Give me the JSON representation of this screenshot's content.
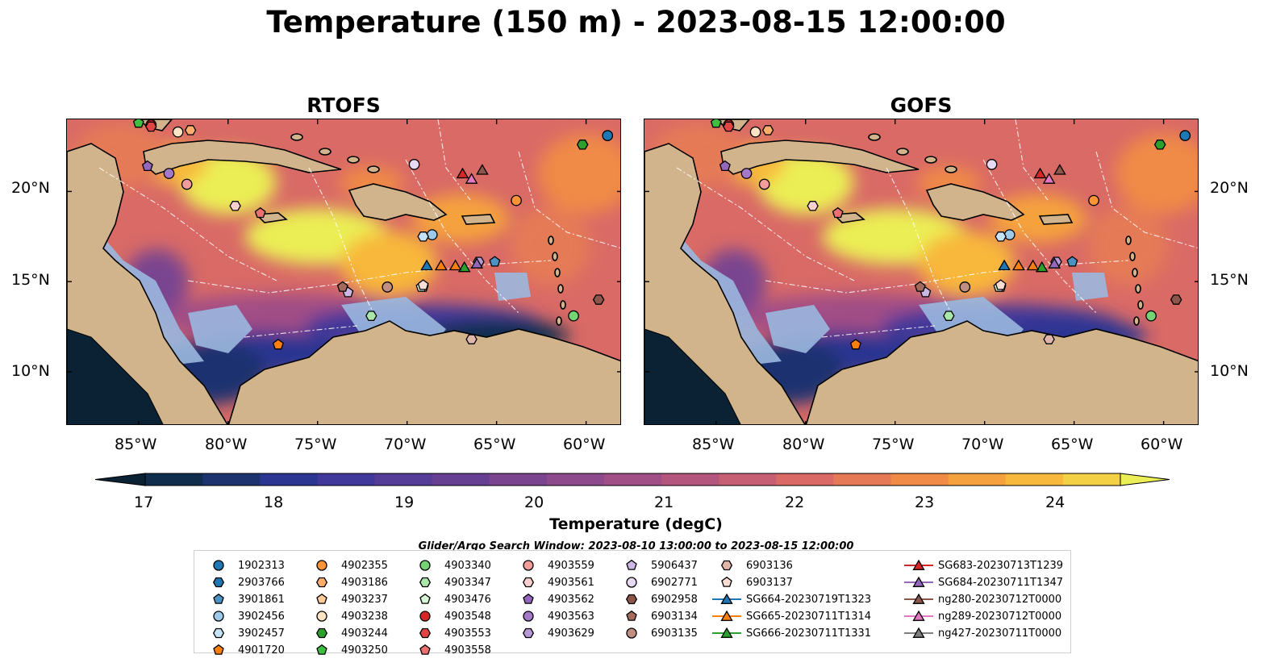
{
  "title": "Temperature (150 m) - 2023-08-15 12:00:00",
  "panels": [
    {
      "title": "RTOFS"
    },
    {
      "title": "GOFS"
    }
  ],
  "axes": {
    "lon_labels": [
      "85°W",
      "80°W",
      "75°W",
      "70°W",
      "65°W",
      "60°W"
    ],
    "lat_labels": [
      "20°N",
      "15°N",
      "10°N"
    ],
    "lon_range": [
      -89,
      -58
    ],
    "lat_range": [
      7,
      24
    ]
  },
  "colorbar": {
    "label": "Temperature (degC)",
    "ticks": [
      "17",
      "18",
      "19",
      "20",
      "21",
      "22",
      "23",
      "24"
    ],
    "vmin": 16.5,
    "vmax": 24.5,
    "step": 0.5,
    "extend": "both",
    "colors": [
      "#0a2234",
      "#112d4e",
      "#1c3370",
      "#2a3691",
      "#40389a",
      "#553c98",
      "#663f92",
      "#7a4490",
      "#8d498b",
      "#a14e86",
      "#b4557e",
      "#c65e74",
      "#d96a66",
      "#e57a56",
      "#ef8a47",
      "#f5a23e",
      "#f8b83b",
      "#f3d044",
      "#ebee55"
    ]
  },
  "search_window": "Glider/Argo Search Window: 2023-08-10 13:00:00 to 2023-08-15 12:00:00",
  "legend": [
    {
      "label": "1902313",
      "marker": "circle",
      "color": "#1f77b4"
    },
    {
      "label": "2903766",
      "marker": "hexagon",
      "color": "#1f77b4"
    },
    {
      "label": "3901861",
      "marker": "pentagon",
      "color": "#4c92c3"
    },
    {
      "label": "3902456",
      "marker": "circle",
      "color": "#9ecae9"
    },
    {
      "label": "3902457",
      "marker": "hexagon",
      "color": "#c6e2f5"
    },
    {
      "label": "4901720",
      "marker": "pentagon",
      "color": "#ff7f0e"
    },
    {
      "label": "4902355",
      "marker": "circle",
      "color": "#ff9436"
    },
    {
      "label": "4903186",
      "marker": "hexagon",
      "color": "#ffae6b"
    },
    {
      "label": "4903237",
      "marker": "pentagon",
      "color": "#ffcc99"
    },
    {
      "label": "4903238",
      "marker": "circle",
      "color": "#ffe4c4"
    },
    {
      "label": "4903244",
      "marker": "hexagon",
      "color": "#2ca02c"
    },
    {
      "label": "4903250",
      "marker": "pentagon",
      "color": "#3fbf3f"
    },
    {
      "label": "4903340",
      "marker": "circle",
      "color": "#74d474"
    },
    {
      "label": "4903347",
      "marker": "hexagon",
      "color": "#a9e6a9"
    },
    {
      "label": "4903476",
      "marker": "pentagon",
      "color": "#d7f5d7"
    },
    {
      "label": "4903548",
      "marker": "circle",
      "color": "#d62728"
    },
    {
      "label": "4903553",
      "marker": "hexagon",
      "color": "#e04444"
    },
    {
      "label": "4903558",
      "marker": "pentagon",
      "color": "#ec7070"
    },
    {
      "label": "4903559",
      "marker": "circle",
      "color": "#f29c9c"
    },
    {
      "label": "4903561",
      "marker": "hexagon",
      "color": "#f9d0d0"
    },
    {
      "label": "4903562",
      "marker": "pentagon",
      "color": "#9467bd"
    },
    {
      "label": "4903563",
      "marker": "circle",
      "color": "#a47ac8"
    },
    {
      "label": "4903629",
      "marker": "hexagon",
      "color": "#b79ad5"
    },
    {
      "label": "5906437",
      "marker": "pentagon",
      "color": "#ccb8e3"
    },
    {
      "label": "6902771",
      "marker": "circle",
      "color": "#e6d9f2"
    },
    {
      "label": "6902958",
      "marker": "hexagon",
      "color": "#8c564b"
    },
    {
      "label": "6903134",
      "marker": "pentagon",
      "color": "#a46a5e"
    },
    {
      "label": "6903135",
      "marker": "circle",
      "color": "#c08f82"
    },
    {
      "label": "6903136",
      "marker": "hexagon",
      "color": "#e0b5aa"
    },
    {
      "label": "6903137",
      "marker": "pentagon",
      "color": "#f8ddd5"
    },
    {
      "label": "SG664-20230719T1323",
      "marker": "triangle",
      "color": "#1f77b4"
    },
    {
      "label": "SG665-20230711T1314",
      "marker": "triangle",
      "color": "#ff7f0e"
    },
    {
      "label": "SG666-20230711T1331",
      "marker": "triangle",
      "color": "#2ca02c"
    },
    {
      "label": "SG683-20230713T1239",
      "marker": "triangle",
      "color": "#d62728"
    },
    {
      "label": "SG684-20230711T1347",
      "marker": "triangle",
      "color": "#9467bd"
    },
    {
      "label": "ng280-20230712T0000",
      "marker": "triangle",
      "color": "#8c564b"
    },
    {
      "label": "ng289-20230712T0000",
      "marker": "triangle",
      "color": "#e377c2"
    },
    {
      "label": "ng427-20230711T0000",
      "marker": "triangle",
      "color": "#7f7f7f"
    }
  ],
  "markers": [
    {
      "label": "1902313",
      "lon": -58.8,
      "lat": 23.1
    },
    {
      "label": "2903766",
      "lon": -60.2,
      "lat": 22.6
    },
    {
      "label": "3901861",
      "lon": -65.1,
      "lat": 16.1
    },
    {
      "label": "3902456",
      "lon": -68.6,
      "lat": 17.6
    },
    {
      "label": "3902457",
      "lon": -69.1,
      "lat": 17.5
    },
    {
      "label": "4901720",
      "lon": -77.2,
      "lat": 11.5
    },
    {
      "label": "4902355",
      "lon": -63.9,
      "lat": 19.5
    },
    {
      "label": "4903186",
      "lon": -82.1,
      "lat": 23.4
    },
    {
      "label": "4903237",
      "lon": -69.1,
      "lat": 14.7
    },
    {
      "label": "4903238",
      "lon": -82.8,
      "lat": 23.3
    },
    {
      "label": "4903244",
      "lon": -60.2,
      "lat": 22.6
    },
    {
      "label": "4903250",
      "lon": -85.0,
      "lat": 23.8
    },
    {
      "label": "4903340",
      "lon": -60.7,
      "lat": 13.1
    },
    {
      "label": "4903347",
      "lon": -72.0,
      "lat": 13.1
    },
    {
      "label": "4903476",
      "lon": -69.2,
      "lat": 14.7
    },
    {
      "label": "4903548",
      "lon": -84.3,
      "lat": 23.7
    },
    {
      "label": "4903553",
      "lon": -84.3,
      "lat": 23.6
    },
    {
      "label": "4903558",
      "lon": -78.2,
      "lat": 18.8
    },
    {
      "label": "4903559",
      "lon": -82.3,
      "lat": 20.4
    },
    {
      "label": "4903561",
      "lon": -79.6,
      "lat": 19.2
    },
    {
      "label": "4903562",
      "lon": -84.5,
      "lat": 21.4
    },
    {
      "label": "4903563",
      "lon": -83.3,
      "lat": 21.0
    },
    {
      "label": "4903629",
      "lon": -66.0,
      "lat": 16.1
    },
    {
      "label": "5906437",
      "lon": -73.3,
      "lat": 14.4
    },
    {
      "label": "6902771",
      "lon": -69.6,
      "lat": 21.5
    },
    {
      "label": "6902958",
      "lon": -59.3,
      "lat": 14.0
    },
    {
      "label": "6903134",
      "lon": -73.6,
      "lat": 14.7
    },
    {
      "label": "6903135",
      "lon": -71.1,
      "lat": 14.7
    },
    {
      "label": "6903136",
      "lon": -66.4,
      "lat": 11.8
    },
    {
      "label": "6903137",
      "lon": -69.1,
      "lat": 14.8
    },
    {
      "label": "SG664-20230719T1323",
      "lon": -68.9,
      "lat": 15.9
    },
    {
      "label": "SG665-20230711T1314",
      "lon": -68.1,
      "lat": 15.9
    },
    {
      "label": "SG666-20230711T1331",
      "lon": -66.8,
      "lat": 15.8
    },
    {
      "label": "SG665-20230711T1314",
      "lon": -67.3,
      "lat": 15.9
    },
    {
      "label": "SG683-20230713T1239",
      "lon": -66.9,
      "lat": 21.0
    },
    {
      "label": "SG684-20230711T1347",
      "lon": -66.1,
      "lat": 16.0
    },
    {
      "label": "ng280-20230712T0000",
      "lon": -65.8,
      "lat": 21.2
    },
    {
      "label": "ng289-20230712T0000",
      "lon": -66.4,
      "lat": 20.7
    }
  ]
}
